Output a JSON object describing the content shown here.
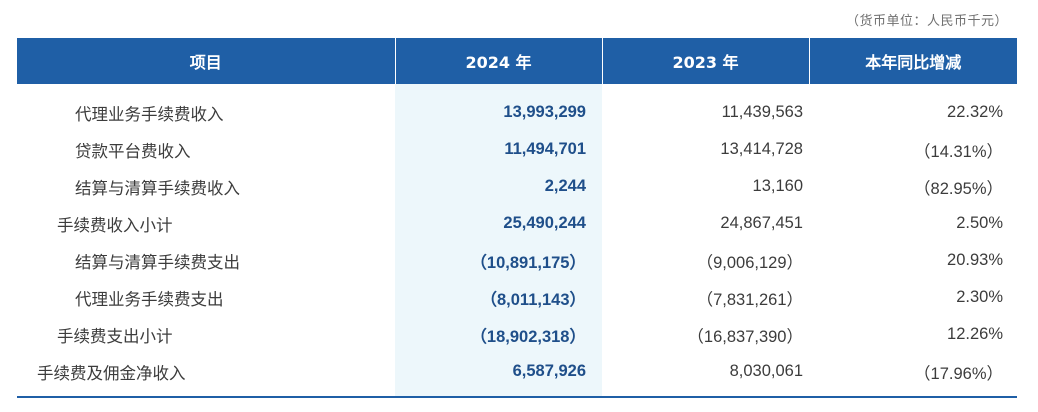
{
  "unit_note": "（货币单位：人民币千元）",
  "headers": {
    "item": "项目",
    "y2024": "2024 年",
    "y2023": "2023 年",
    "change": "本年同比增减"
  },
  "rows": [
    {
      "item": "代理业务手续费收入",
      "y2024": "13,993,299",
      "y2023": "11,439,563",
      "change": "22.32%"
    },
    {
      "item": "贷款平台费收入",
      "y2024": "11,494,701",
      "y2023": "13,414,728",
      "change": "（14.31%）"
    },
    {
      "item": "结算与清算手续费收入",
      "y2024": "2,244",
      "y2023": "13,160",
      "change": "（82.95%）"
    },
    {
      "item": "手续费收入小计",
      "y2024": "25,490,244",
      "y2023": "24,867,451",
      "change": "2.50%"
    },
    {
      "item": "结算与清算手续费支出",
      "y2024": "（10,891,175）",
      "y2023": "（9,006,129）",
      "change": "20.93%"
    },
    {
      "item": "代理业务手续费支出",
      "y2024": "（8,011,143）",
      "y2023": "（7,831,261）",
      "change": "2.30%"
    },
    {
      "item": "手续费支出小计",
      "y2024": "（18,902,318）",
      "y2023": "（16,837,390）",
      "change": "12.26%"
    },
    {
      "item": "手续费及佣金净收入",
      "y2024": "6,587,926",
      "y2023": "8,030,061",
      "change": "（17.96%）"
    }
  ],
  "colors": {
    "header_bg": "#1f5fa6",
    "highlight_column_bg": "#edf7fb",
    "highlight_text": "#1f4f8a"
  }
}
